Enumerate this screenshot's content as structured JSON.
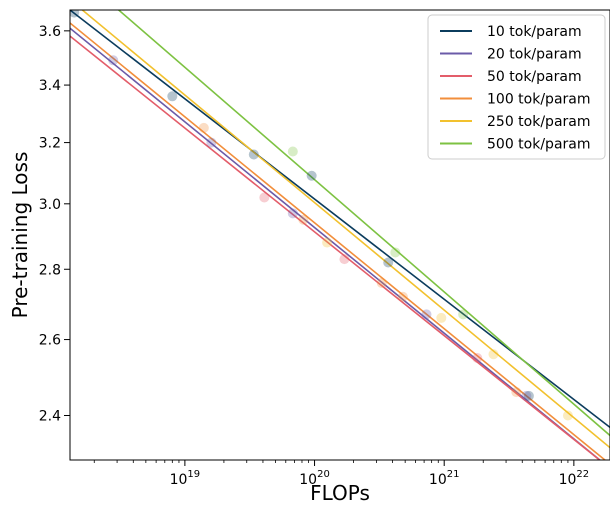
{
  "chart_data": {
    "type": "scatter",
    "xlabel": "FLOPs",
    "ylabel": "Pre-training Loss",
    "x_scale": "log",
    "y_scale": "log",
    "xlim": [
      1.3e+18,
      1.9e+22
    ],
    "ylim": [
      2.29,
      3.68
    ],
    "x_ticks": [
      {
        "value": 1e+19,
        "base": "10",
        "exp": "19"
      },
      {
        "value": 1e+20,
        "base": "10",
        "exp": "20"
      },
      {
        "value": 1e+21,
        "base": "10",
        "exp": "21"
      },
      {
        "value": 1e+22,
        "base": "10",
        "exp": "22"
      }
    ],
    "y_ticks": [
      {
        "value": 2.4,
        "label": "2.4"
      },
      {
        "value": 2.6,
        "label": "2.6"
      },
      {
        "value": 2.8,
        "label": "2.8"
      },
      {
        "value": 3.0,
        "label": "3.0"
      },
      {
        "value": 3.2,
        "label": "3.2"
      },
      {
        "value": 3.4,
        "label": "3.4"
      },
      {
        "value": 3.6,
        "label": "3.6"
      }
    ],
    "grid": false,
    "legend_position": "top-right",
    "series": [
      {
        "name": "10 tok/param",
        "color": "#0b3c5d",
        "points": [
          [
            1.4e+18,
            3.67
          ],
          [
            8e+18,
            3.36
          ],
          [
            3.4e+19,
            3.16
          ],
          [
            9.5e+19,
            3.09
          ],
          [
            3.7e+20,
            2.82
          ],
          [
            4.5e+21,
            2.45
          ]
        ],
        "fit": [
          [
            1.3e+18,
            3.68
          ],
          [
            1.9e+22,
            2.37
          ]
        ]
      },
      {
        "name": "20 tok/param",
        "color": "#6b5ba8",
        "points": [
          [
            2.8e+18,
            3.49
          ],
          [
            1.6e+19,
            3.2
          ],
          [
            6.8e+19,
            2.97
          ],
          [
            7.3e+20,
            2.67
          ],
          [
            4.3e+21,
            2.45
          ]
        ],
        "fit": [
          [
            1.3e+18,
            3.61
          ],
          [
            1.9e+22,
            2.27
          ]
        ]
      },
      {
        "name": "50 tok/param",
        "color": "#e35d6a",
        "points": [
          [
            4.1e+19,
            3.02
          ],
          [
            1.7e+20,
            2.83
          ],
          [
            1.8e+21,
            2.55
          ]
        ],
        "fit": [
          [
            1.3e+18,
            3.58
          ],
          [
            1.9e+22,
            2.27
          ]
        ]
      },
      {
        "name": "100 tok/param",
        "color": "#f28e3b",
        "points": [
          [
            1.4e+19,
            3.25
          ],
          [
            8.2e+19,
            2.95
          ],
          [
            3.3e+20,
            2.76
          ],
          [
            4.8e+20,
            2.72
          ],
          [
            3.6e+21,
            2.46
          ]
        ],
        "fit": [
          [
            1.3e+18,
            3.63
          ],
          [
            1.9e+22,
            2.28
          ]
        ]
      },
      {
        "name": "250 tok/param",
        "color": "#f2c12e",
        "points": [
          [
            1.25e+20,
            2.88
          ],
          [
            9.5e+20,
            2.66
          ],
          [
            2.4e+21,
            2.56
          ],
          [
            9e+21,
            2.4
          ]
        ],
        "fit": [
          [
            1.3e+18,
            3.72
          ],
          [
            1.9e+22,
            2.32
          ]
        ]
      },
      {
        "name": "500 tok/param",
        "color": "#7dc242",
        "points": [
          [
            6.8e+19,
            3.17
          ],
          [
            4.2e+20,
            2.85
          ],
          [
            1.4e+21,
            2.67
          ]
        ],
        "fit": [
          [
            2.5e+18,
            3.72
          ],
          [
            1.9e+22,
            2.35
          ]
        ]
      }
    ]
  }
}
